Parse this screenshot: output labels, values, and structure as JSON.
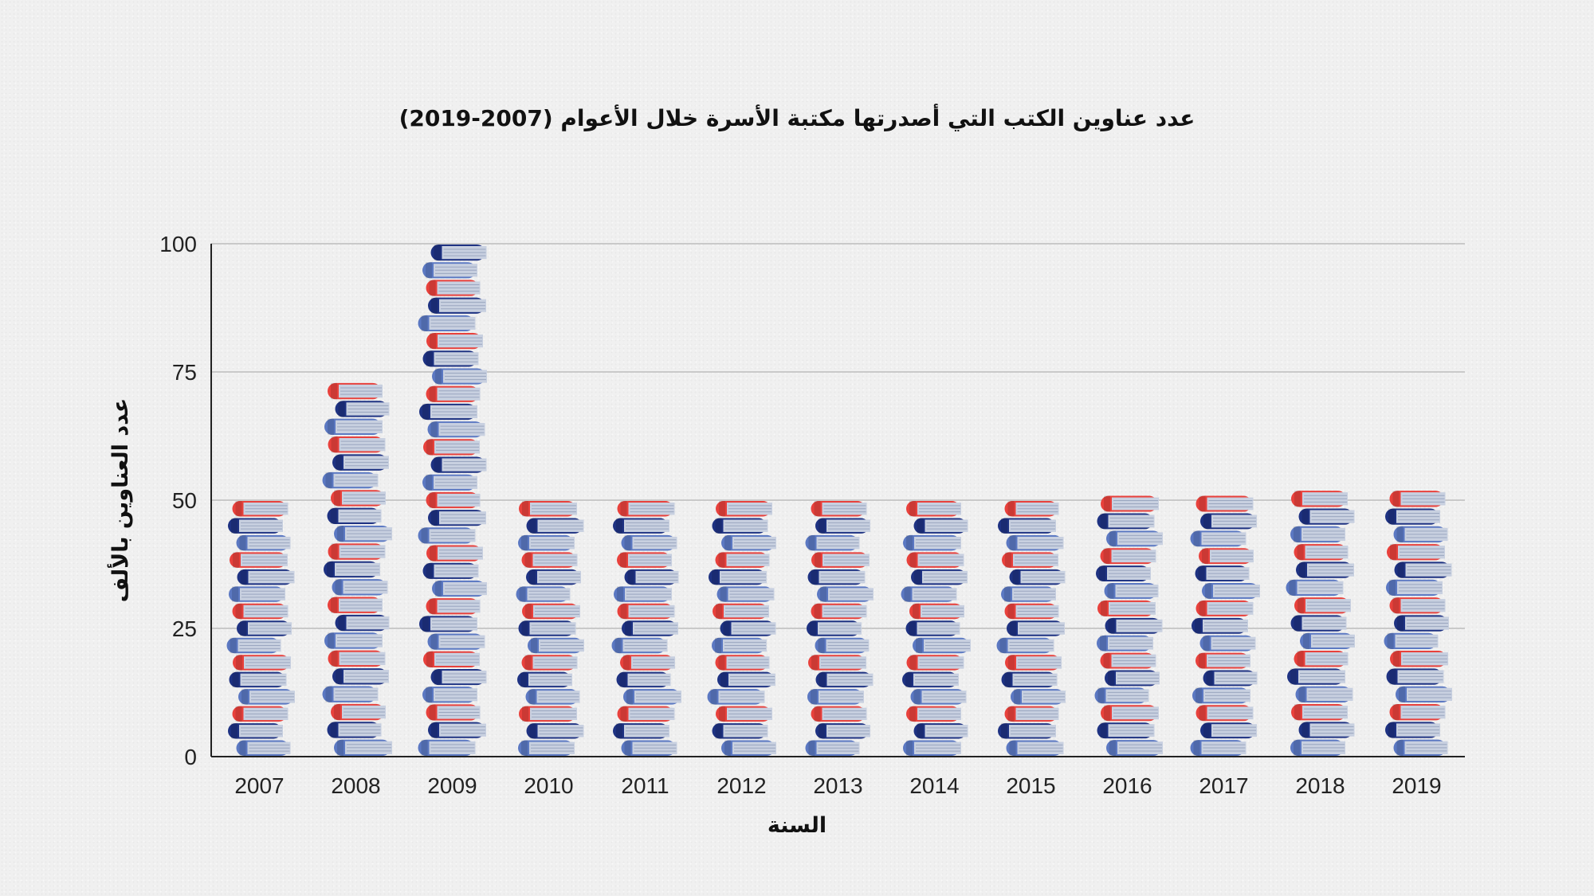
{
  "chart_data": {
    "type": "bar",
    "title": "عدد عناوين الكتب التي أصدرتها مكتبة الأسرة خلال الأعوام (2007-2019)",
    "xlabel": "السنة",
    "ylabel": "عدد العناوين بالألف",
    "categories": [
      "2007",
      "2008",
      "2009",
      "2010",
      "2011",
      "2012",
      "2013",
      "2014",
      "2015",
      "2016",
      "2017",
      "2018",
      "2019"
    ],
    "values": [
      50,
      73,
      100,
      50,
      50,
      50,
      50,
      50,
      50,
      51,
      51,
      52,
      52
    ],
    "ylim": [
      0,
      100
    ],
    "yticks": [
      0,
      25,
      50,
      75,
      100
    ],
    "grid": true,
    "colors": {
      "red": "#e8413c",
      "navy": "#1e3282",
      "blue": "#5b78c2",
      "pages": "#c8d0e0",
      "grid": "#c9c9c9"
    }
  }
}
